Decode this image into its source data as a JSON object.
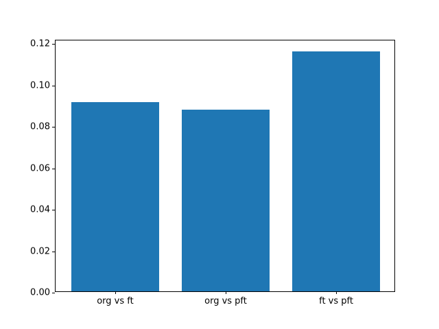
{
  "figure": {
    "background": "#ffffff",
    "bar_color": "#1f77b4",
    "spine_color": "#000000",
    "text_color": "#000000"
  },
  "chart_data": {
    "type": "bar",
    "categories": [
      "org vs ft",
      "org vs pft",
      "ft vs pft"
    ],
    "values": [
      0.0915,
      0.0878,
      0.116
    ],
    "title": "",
    "xlabel": "",
    "ylabel": "",
    "ylim": [
      0,
      0.1218
    ],
    "xlim": [
      -0.54,
      2.54
    ],
    "bar_width": 0.8,
    "yticks": [
      0.0,
      0.02,
      0.04,
      0.06,
      0.08,
      0.1,
      0.12
    ],
    "ytick_labels": [
      "0.00",
      "0.02",
      "0.04",
      "0.06",
      "0.08",
      "0.10",
      "0.12"
    ],
    "grid": false,
    "legend": null
  }
}
